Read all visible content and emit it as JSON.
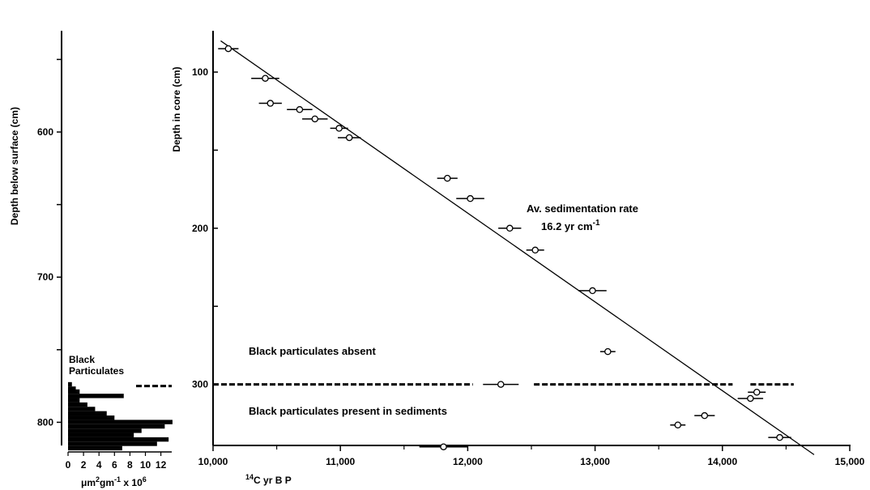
{
  "chart_data": [
    {
      "type": "bar",
      "orientation": "horizontal",
      "title": "Black Particulates",
      "ylabel": "Depth below surface (cm)",
      "ylim": [
        530,
        820
      ],
      "y_ticks": [
        "600",
        "700",
        "800"
      ],
      "x_ticks": [
        "0",
        "2",
        "4",
        "6",
        "8",
        "10",
        "12"
      ],
      "xlabel_parts": {
        "pre": "μm",
        "sup1": "2",
        "mid": "gm",
        "sup2": "-1",
        "post": " x 10",
        "sup3": "6"
      },
      "xlim": [
        0,
        13
      ],
      "bars": [
        {
          "depth": 774,
          "value": 0.5
        },
        {
          "depth": 777,
          "value": 1
        },
        {
          "depth": 779,
          "value": 1.5
        },
        {
          "depth": 782,
          "value": 7.2
        },
        {
          "depth": 785,
          "value": 1.5
        },
        {
          "depth": 788,
          "value": 2.5
        },
        {
          "depth": 791,
          "value": 3.5
        },
        {
          "depth": 794,
          "value": 5
        },
        {
          "depth": 797,
          "value": 6
        },
        {
          "depth": 800,
          "value": 13.5
        },
        {
          "depth": 803,
          "value": 12.5
        },
        {
          "depth": 806,
          "value": 9.5
        },
        {
          "depth": 809,
          "value": 8.5
        },
        {
          "depth": 812,
          "value": 13
        },
        {
          "depth": 815,
          "value": 11.5
        },
        {
          "depth": 818,
          "value": 7
        }
      ],
      "threshold_depth": 775
    },
    {
      "type": "scatter",
      "xlabel_parts": {
        "sup": "14",
        "text": "C yr B P"
      },
      "ylabel": "Depth in core (cm)",
      "xlim": [
        10000,
        15000
      ],
      "ylim": [
        75,
        345
      ],
      "x_ticks": [
        "10,000",
        "11,000",
        "12,000",
        "13,000",
        "14,000",
        "15,000"
      ],
      "y_ticks": [
        "100",
        "200",
        "300"
      ],
      "points": [
        {
          "x": 10120,
          "y": 85,
          "err": 80
        },
        {
          "x": 10410,
          "y": 104,
          "err": 110
        },
        {
          "x": 10450,
          "y": 120,
          "err": 90
        },
        {
          "x": 10680,
          "y": 124,
          "err": 100
        },
        {
          "x": 10800,
          "y": 130,
          "err": 100
        },
        {
          "x": 10990,
          "y": 136,
          "err": 70
        },
        {
          "x": 11070,
          "y": 142,
          "err": 90
        },
        {
          "x": 11840,
          "y": 168,
          "err": 80
        },
        {
          "x": 12020,
          "y": 181,
          "err": 110
        },
        {
          "x": 12330,
          "y": 200,
          "err": 90
        },
        {
          "x": 12530,
          "y": 214,
          "err": 70
        },
        {
          "x": 12980,
          "y": 240,
          "err": 110
        },
        {
          "x": 13100,
          "y": 279,
          "err": 60
        },
        {
          "x": 12260,
          "y": 300,
          "err": 140
        },
        {
          "x": 14270,
          "y": 305,
          "err": 70
        },
        {
          "x": 14220,
          "y": 309,
          "err": 100
        },
        {
          "x": 13860,
          "y": 320,
          "err": 80
        },
        {
          "x": 13650,
          "y": 326,
          "err": 60
        },
        {
          "x": 14450,
          "y": 334,
          "err": 90
        },
        {
          "x": 11810,
          "y": 340,
          "err": 190
        }
      ],
      "trend_line": {
        "from": [
          10060,
          80
        ],
        "to": [
          14720,
          345
        ]
      },
      "threshold_y": 300,
      "threshold_segments": [
        [
          10000,
          12040
        ],
        [
          12520,
          14080
        ],
        [
          14220,
          14560
        ]
      ],
      "annotations": {
        "rate_title": "Av. sedimentation rate",
        "rate_value": "16.2 yr cm",
        "rate_exp": "-1",
        "absent": "Black particulates absent",
        "present": "Black particulates present in sediments"
      }
    }
  ]
}
